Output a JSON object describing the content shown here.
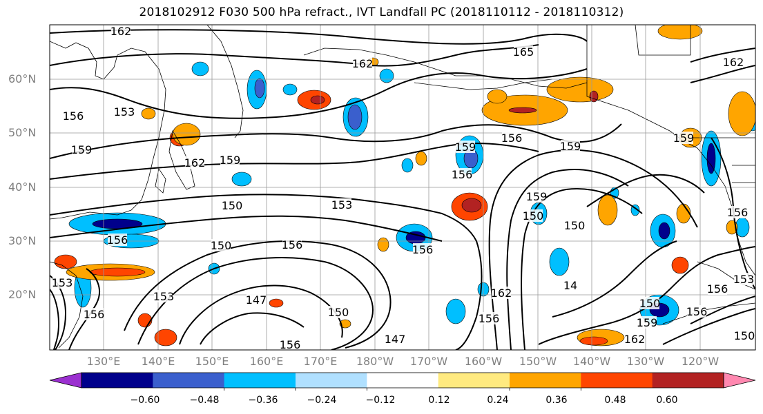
{
  "title": "2018102912 F030 500 hPa refract., IVT Landfall PC (2018110112 - 2018110312)",
  "lat_labels": [
    "60°N",
    "50°N",
    "40°N",
    "30°N",
    "20°N"
  ],
  "lon_labels": [
    "130°E",
    "140°E",
    "150°E",
    "160°E",
    "170°E",
    "180°W",
    "170°W",
    "160°W",
    "150°W",
    "140°W",
    "130°W",
    "120°W"
  ],
  "colorbar": {
    "colors": [
      "#9b30d0",
      "#00008b",
      "#3a5fcd",
      "#00bfff",
      "#b0e0ff",
      "#ffffff",
      "#ffea80",
      "#ffa500",
      "#ff4500",
      "#b22222",
      "#ff88b0"
    ],
    "tick_labels": [
      "−0.60",
      "−0.48",
      "−0.36",
      "−0.24",
      "−0.12",
      "0.12",
      "0.24",
      "0.36",
      "0.48",
      "0.60"
    ]
  },
  "contour_labels": [
    "162",
    "162",
    "165",
    "162",
    "159",
    "156",
    "153",
    "159",
    "162",
    "159",
    "159",
    "156",
    "159",
    "150",
    "153",
    "156",
    "150",
    "156",
    "156",
    "150",
    "159",
    "156",
    "153",
    "147",
    "150",
    "147",
    "150",
    "156",
    "162",
    "159",
    "162",
    "156",
    "156",
    "150",
    "153",
    "156",
    "156",
    "153",
    "156",
    "14",
    "150"
  ]
}
